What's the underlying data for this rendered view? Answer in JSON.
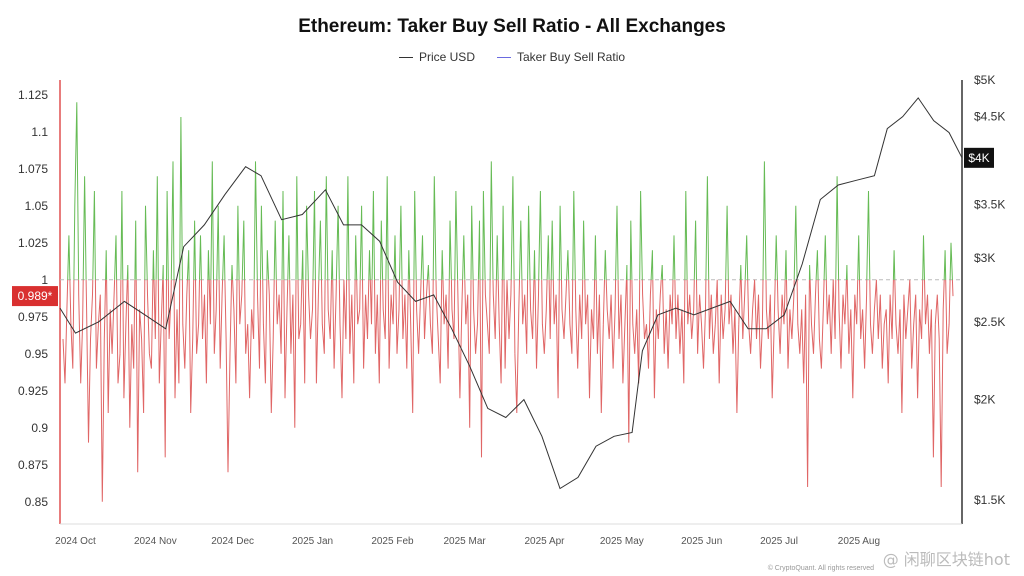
{
  "chart_data": {
    "type": "line",
    "title": "Ethereum: Taker Buy Sell Ratio - All Exchanges",
    "legend": [
      {
        "name": "Price USD",
        "color": "#333333"
      },
      {
        "name": "Taker Buy Sell Ratio",
        "color": "#6a6ae0"
      }
    ],
    "y_left": {
      "range": [
        0.835,
        1.135
      ],
      "ticks": [
        "1.125",
        "1.1",
        "1.075",
        "1.05",
        "1.025",
        "1",
        "0.975",
        "0.95",
        "0.925",
        "0.9",
        "0.875",
        "0.85"
      ],
      "tick_values": [
        1.125,
        1.1,
        1.075,
        1.05,
        1.025,
        1,
        0.975,
        0.95,
        0.925,
        0.9,
        0.875,
        0.85
      ],
      "reference": 1
    },
    "y_right": {
      "scale": "log",
      "range": [
        1400,
        5000
      ],
      "ticks": [
        "$5K",
        "$4.5K",
        "$4K",
        "$3.5K",
        "$3K",
        "$2.5K",
        "$2K",
        "$1.5K"
      ],
      "tick_values": [
        5000,
        4500,
        4000,
        3500,
        3000,
        2500,
        2000,
        1500
      ]
    },
    "x_labels": [
      "2024 Oct",
      "2024 Nov",
      "2024 Dec",
      "2025 Jan",
      "2025 Feb",
      "2025 Mar",
      "2025 Apr",
      "2025 May",
      "2025 Jun",
      "2025 Jul",
      "2025 Aug"
    ],
    "current_ratio_label": "0.989*",
    "current_price_label": "$4K",
    "series": [
      {
        "name": "Price USD",
        "color": "#333333",
        "x": [
          "2024-09-25",
          "2024-10-01",
          "2024-10-10",
          "2024-10-20",
          "2024-10-28",
          "2024-11-05",
          "2024-11-12",
          "2024-11-20",
          "2024-11-28",
          "2024-12-06",
          "2024-12-12",
          "2024-12-20",
          "2024-12-28",
          "2025-01-06",
          "2025-01-13",
          "2025-01-20",
          "2025-01-27",
          "2025-02-03",
          "2025-02-10",
          "2025-02-17",
          "2025-02-24",
          "2025-03-03",
          "2025-03-10",
          "2025-03-17",
          "2025-03-24",
          "2025-03-31",
          "2025-04-07",
          "2025-04-14",
          "2025-04-21",
          "2025-04-28",
          "2025-05-05",
          "2025-05-09",
          "2025-05-15",
          "2025-05-22",
          "2025-05-29",
          "2025-06-05",
          "2025-06-12",
          "2025-06-19",
          "2025-06-26",
          "2025-07-03",
          "2025-07-10",
          "2025-07-17",
          "2025-07-24",
          "2025-07-31",
          "2025-08-07",
          "2025-08-12",
          "2025-08-18",
          "2025-08-24",
          "2025-08-30",
          "2025-09-05",
          "2025-09-10"
        ],
        "values": [
          2600,
          2420,
          2500,
          2650,
          2550,
          2450,
          3100,
          3300,
          3600,
          3900,
          3800,
          3350,
          3400,
          3650,
          3300,
          3300,
          3150,
          2800,
          2650,
          2700,
          2450,
          2200,
          1950,
          1900,
          2000,
          1800,
          1550,
          1600,
          1750,
          1800,
          1820,
          2300,
          2550,
          2600,
          2550,
          2600,
          2650,
          2450,
          2450,
          2550,
          2950,
          3550,
          3700,
          3750,
          3800,
          4350,
          4500,
          4750,
          4450,
          4300,
          4000
        ]
      },
      {
        "name": "Taker Buy Sell Ratio",
        "color": "#6a6ae0",
        "x_start": "2024-09-25",
        "x_end": "2025-09-10",
        "values": [
          0.96,
          0.93,
          0.98,
          1.03,
          0.97,
          0.94,
          1.05,
          1.12,
          0.99,
          0.93,
          0.97,
          1.07,
          0.98,
          0.89,
          0.96,
          0.99,
          1.06,
          0.94,
          0.97,
          0.99,
          0.85,
          0.96,
          1.02,
          0.91,
          0.98,
          0.95,
          0.99,
          1.03,
          0.93,
          0.95,
          1.06,
          0.92,
          0.97,
          1.01,
          0.9,
          0.97,
          0.94,
          1.04,
          0.87,
          0.98,
          0.96,
          0.91,
          1.05,
          0.99,
          0.95,
          0.94,
          1.02,
          0.96,
          1.07,
          0.93,
          0.97,
          1.01,
          0.88,
          1.06,
          0.96,
          0.99,
          1.08,
          0.92,
          0.98,
          0.93,
          1.11,
          0.97,
          0.94,
          0.99,
          1.02,
          0.91,
          0.96,
          1.04,
          0.95,
          0.97,
          1.03,
          0.96,
          0.99,
          0.93,
          1.02,
          0.97,
          1.08,
          0.95,
          0.98,
          1.05,
          0.94,
          0.99,
          1.03,
          0.96,
          0.87,
          0.95,
          1.01,
          0.98,
          0.93,
          1.05,
          0.97,
          0.99,
          1.04,
          0.95,
          0.97,
          0.92,
          0.98,
          0.96,
          1.08,
          0.99,
          0.94,
          1.05,
          0.97,
          0.93,
          1.02,
          0.99,
          0.91,
          0.96,
          1.04,
          0.97,
          0.99,
          0.95,
          1.06,
          0.92,
          0.98,
          1.03,
          0.95,
          0.99,
          0.9,
          1.07,
          0.96,
          0.97,
          1.02,
          0.93,
          1.05,
          0.99,
          0.96,
          0.98,
          1.06,
          0.93,
          0.99,
          1.04,
          0.97,
          0.95,
          1.07,
          0.98,
          0.96,
          1.02,
          0.94,
          0.99,
          1.05,
          0.97,
          0.92,
          1.0,
          0.96,
          1.07,
          0.95,
          0.99,
          0.93,
          1.03,
          0.97,
          0.98,
          1.05,
          0.94,
          0.99,
          0.96,
          1.02,
          0.97,
          1.06,
          0.95,
          0.99,
          0.93,
          1.04,
          0.98,
          0.96,
          1.07,
          0.94,
          0.99,
          0.97,
          1.03,
          0.95,
          0.98,
          1.05,
          0.96,
          0.99,
          0.94,
          1.02,
          0.97,
          0.91,
          1.06,
          0.98,
          0.95,
          0.99,
          1.03,
          0.96,
          0.99,
          1.01,
          0.97,
          0.95,
          1.07,
          0.99,
          0.96,
          0.93,
          1.02,
          0.97,
          0.99,
          0.94,
          1.04,
          0.98,
          0.96,
          1.06,
          0.99,
          0.92,
          0.98,
          1.03,
          0.97,
          0.99,
          0.9,
          1.05,
          0.98,
          0.95,
          0.97,
          1.04,
          0.88,
          1.06,
          0.99,
          0.97,
          0.95,
          1.08,
          0.99,
          0.96,
          1.03,
          0.97,
          0.93,
          1.05,
          0.94,
          1.0,
          0.96,
          0.99,
          1.07,
          0.95,
          0.91,
          0.98,
          1.04,
          0.97,
          0.99,
          0.95,
          1.05,
          0.98,
          0.96,
          1.02,
          0.94,
          0.99,
          1.06,
          0.97,
          0.95,
          0.98,
          1.03,
          0.96,
          1.04,
          0.97,
          0.99,
          0.92,
          1.05,
          0.98,
          0.96,
          0.99,
          1.02,
          0.97,
          0.95,
          1.06,
          0.98,
          0.94,
          0.99,
          0.96,
          1.04,
          0.97,
          0.99,
          0.92,
          0.98,
          0.96,
          1.03,
          0.95,
          0.99,
          0.91,
          0.97,
          1.02,
          0.98,
          0.96,
          0.99,
          0.94,
          0.98,
          1.05,
          0.96,
          0.99,
          0.93,
          0.97,
          1.01,
          0.89,
          1.04,
          0.97,
          0.95,
          0.98,
          0.93,
          1.06,
          0.99,
          0.96,
          0.97,
          0.94,
          0.99,
          1.02,
          0.92,
          0.98,
          0.96,
          0.99,
          1.01,
          0.95,
          0.98,
          0.94,
          0.99,
          0.97,
          1.03,
          0.96,
          0.99,
          0.95,
          0.98,
          0.93,
          1.06,
          0.97,
          0.99,
          0.96,
          0.98,
          1.04,
          0.95,
          0.99,
          0.97,
          0.94,
          0.98,
          1.07,
          0.96,
          0.99,
          0.95,
          0.97,
          1.0,
          0.93,
          0.99,
          0.96,
          0.98,
          1.05,
          0.97,
          0.99,
          0.95,
          0.98,
          0.91,
          0.97,
          1.01,
          0.96,
          0.99,
          1.03,
          0.97,
          0.95,
          0.98,
          1.0,
          0.96,
          0.99,
          0.94,
          0.97,
          1.08,
          0.98,
          0.96,
          0.99,
          0.92,
          0.97,
          1.03,
          0.98,
          0.95,
          0.99,
          0.97,
          1.02,
          0.94,
          0.98,
          0.96,
          0.99,
          1.05,
          0.97,
          0.95,
          0.98,
          0.93,
          0.99,
          0.86,
          1.01,
          0.97,
          0.95,
          0.99,
          1.02,
          0.96,
          0.94,
          0.98,
          1.03,
          0.97,
          0.99,
          0.95,
          1.0,
          0.96,
          1.07,
          0.98,
          0.94,
          0.99,
          0.97,
          1.01,
          0.95,
          0.98,
          0.92,
          0.99,
          0.97,
          1.03,
          0.96,
          0.98,
          0.94,
          0.99,
          1.06,
          0.97,
          0.95,
          0.98,
          1.0,
          0.96,
          0.99,
          0.94,
          0.97,
          0.98,
          0.93,
          0.99,
          0.96,
          1.02,
          0.97,
          0.95,
          0.98,
          0.91,
          0.99,
          0.96,
          0.98,
          1.0,
          0.94,
          0.97,
          0.99,
          0.92,
          0.98,
          0.96,
          1.03,
          0.97,
          0.99,
          0.95,
          0.98,
          0.88,
          0.97,
          0.99,
          0.96,
          0.86,
          0.98,
          1.02,
          0.95,
          0.97,
          1.025,
          0.989
        ]
      }
    ],
    "grid": false
  },
  "watermark": "@ 闲聊区块链hot",
  "copyright": "© CryptoQuant. All rights reserved"
}
